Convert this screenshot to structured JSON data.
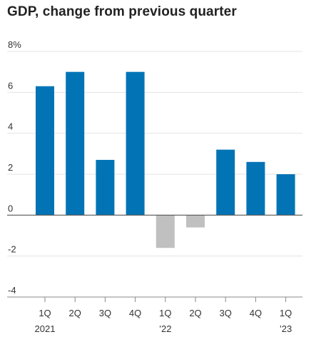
{
  "chart_data": {
    "type": "bar",
    "title": "GDP, change from previous quarter",
    "xlabel": "",
    "ylabel": "",
    "ylim": [
      -4,
      8
    ],
    "yticks": [
      {
        "value": 8,
        "label": "8%"
      },
      {
        "value": 6,
        "label": "6"
      },
      {
        "value": 4,
        "label": "4"
      },
      {
        "value": 2,
        "label": "2"
      },
      {
        "value": 0,
        "label": "0"
      },
      {
        "value": -2,
        "label": "-2"
      },
      {
        "value": -4,
        "label": "-4"
      }
    ],
    "categories": [
      {
        "label": "1Q",
        "sublabel": "2021"
      },
      {
        "label": "2Q",
        "sublabel": ""
      },
      {
        "label": "3Q",
        "sublabel": ""
      },
      {
        "label": "4Q",
        "sublabel": ""
      },
      {
        "label": "1Q",
        "sublabel": "’22"
      },
      {
        "label": "2Q",
        "sublabel": ""
      },
      {
        "label": "3Q",
        "sublabel": ""
      },
      {
        "label": "4Q",
        "sublabel": ""
      },
      {
        "label": "1Q",
        "sublabel": "’23"
      }
    ],
    "values": [
      6.3,
      7.0,
      2.7,
      7.0,
      -1.6,
      -0.6,
      3.2,
      2.6,
      2.0
    ],
    "grid": true,
    "legend": "none",
    "colors": {
      "positive": "#0274b6",
      "negative": "#c0c0c0",
      "grid": "#e3e3e3",
      "zero_line": "#555555",
      "axis": "#888888"
    }
  }
}
